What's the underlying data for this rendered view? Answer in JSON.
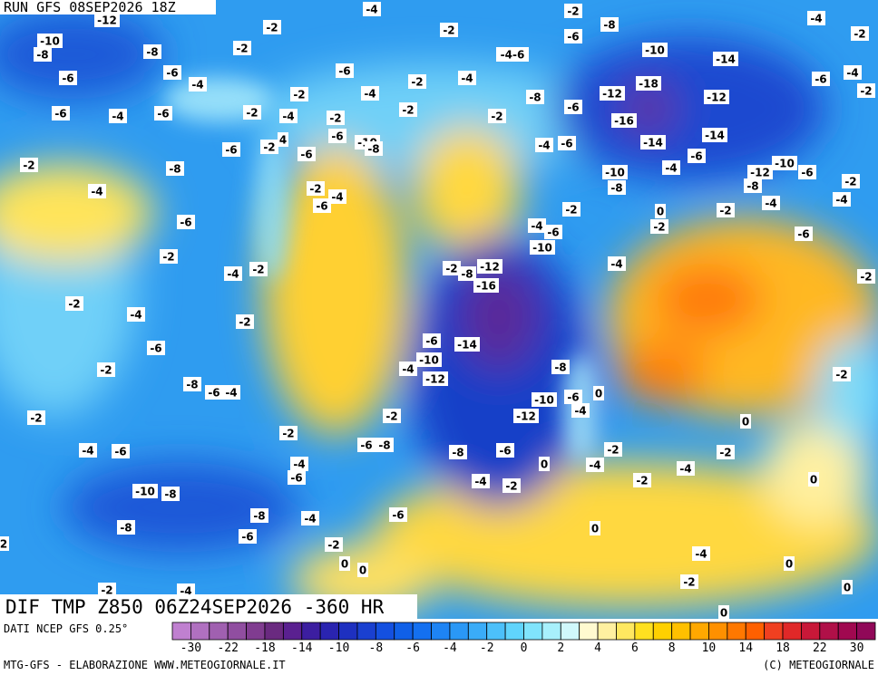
{
  "header": {
    "run": "RUN GFS 08SEP2026 18Z"
  },
  "map": {
    "title": "DIF TMP Z850 06Z24SEP2026 -360 HR",
    "labels": [
      "-12",
      "-4",
      "-2",
      "-4",
      "-2",
      "-2",
      "-8",
      "-10",
      "-8",
      "-8",
      "-2",
      "-6",
      "-10",
      "-14",
      "-2",
      "-4-6",
      "-6",
      "-6",
      "-4",
      "-6",
      "-4",
      "-2",
      "-18",
      "-6",
      "-4",
      "-2",
      "-12",
      "-12",
      "-8",
      "-2",
      "-4",
      "-6",
      "-4",
      "-6",
      "-2",
      "-4",
      "-2",
      "-2",
      "-2",
      "-6",
      "-16",
      "-6",
      "-10",
      "-8",
      "-14",
      "-14",
      "-6",
      "-2",
      "4",
      "-6",
      "-4",
      "-6",
      "-2",
      "-8",
      "-10",
      "-4",
      "-6",
      "-12",
      "-10",
      "-6",
      "-2",
      "-8",
      "-8",
      "-2",
      "-4",
      "-6",
      "-4",
      "-4",
      "-4",
      "-2",
      "0",
      "-2",
      "-6",
      "-2",
      "-4",
      "-6",
      "-10",
      "-6",
      "-2",
      "-4",
      "-4",
      "-2",
      "-2",
      "-8",
      "-12",
      "-16",
      "-2",
      "-2",
      "-4",
      "-2",
      "-6",
      "-14",
      "-6",
      "-10",
      "-4",
      "-8",
      "-2",
      "-2",
      "-8",
      "-12",
      "-6",
      "-4",
      "-10",
      "-6",
      "0",
      "-4",
      "-2",
      "-2",
      "-12",
      "0",
      "-2",
      "-6",
      "-8",
      "-4",
      "-6",
      "-8",
      "-6",
      "-2",
      "-2",
      "-4",
      "0",
      "-4",
      "-4",
      "-6",
      "-4",
      "-2",
      "-2",
      "0",
      "-10",
      "-8",
      "-8",
      "-4",
      "-6",
      "-8",
      "-6",
      "0",
      "-2",
      "2",
      "-4",
      "0",
      "0",
      "0",
      "-2",
      "-2",
      "-4",
      "0",
      "0"
    ]
  },
  "colorbar": {
    "source": "DATI NCEP GFS 0.25°",
    "colors": [
      "#c080d0",
      "#b070c0",
      "#a060b0",
      "#904ea0",
      "#803c90",
      "#6a2a80",
      "#5a2090",
      "#3c1ea0",
      "#2a24b0",
      "#1e30c0",
      "#1a40d0",
      "#1450e0",
      "#1060e8",
      "#1470f0",
      "#1e84f4",
      "#2a98f6",
      "#3aacf8",
      "#4cc0fa",
      "#60d4fc",
      "#80e4fc",
      "#a8f0fc",
      "#d0f8fc",
      "#fffad0",
      "#fff0a0",
      "#ffe860",
      "#ffe020",
      "#ffd000",
      "#ffc000",
      "#ffa800",
      "#ff9000",
      "#ff7800",
      "#ff6000",
      "#f04020",
      "#e02828",
      "#c81838",
      "#b01048",
      "#a00850",
      "#900858"
    ],
    "labels": [
      "-30",
      "-22",
      "-18",
      "-14",
      "-10",
      "-8",
      "-6",
      "-4",
      "-2",
      "0",
      "2",
      "4",
      "6",
      "8",
      "10",
      "14",
      "18",
      "22",
      "30"
    ]
  },
  "footer": {
    "left": "MTG-GFS - ELABORAZIONE WWW.METEOGIORNALE.IT",
    "right": "(C) METEOGIORNALE"
  }
}
